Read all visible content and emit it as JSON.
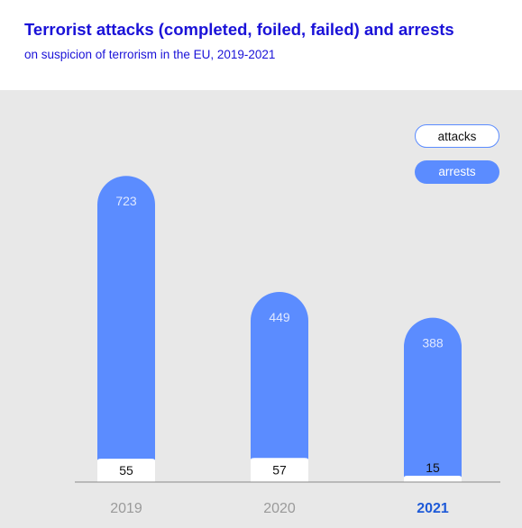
{
  "header": {
    "title": "Terrorist attacks (completed, foiled, failed) and arrests",
    "subtitle": "on suspicion of terrorism in the EU, 2019-2021"
  },
  "legend": {
    "attacks": "attacks",
    "arrests": "arrests"
  },
  "colors": {
    "arrests": "#5b8cff",
    "attacks": "#ffffff",
    "title": "#1a12d8",
    "axis_label": "#9a9a9a",
    "axis_label_highlight": "#1e5ad8",
    "background": "#e8e8e8"
  },
  "chart_data": {
    "type": "bar",
    "categories": [
      "2019",
      "2020",
      "2021"
    ],
    "highlight_category": "2021",
    "series": [
      {
        "name": "arrests",
        "values": [
          723,
          449,
          388
        ]
      },
      {
        "name": "attacks",
        "values": [
          55,
          57,
          15
        ]
      }
    ],
    "ylim": [
      0,
      800
    ],
    "grid": false,
    "legend_position": "top-right"
  }
}
